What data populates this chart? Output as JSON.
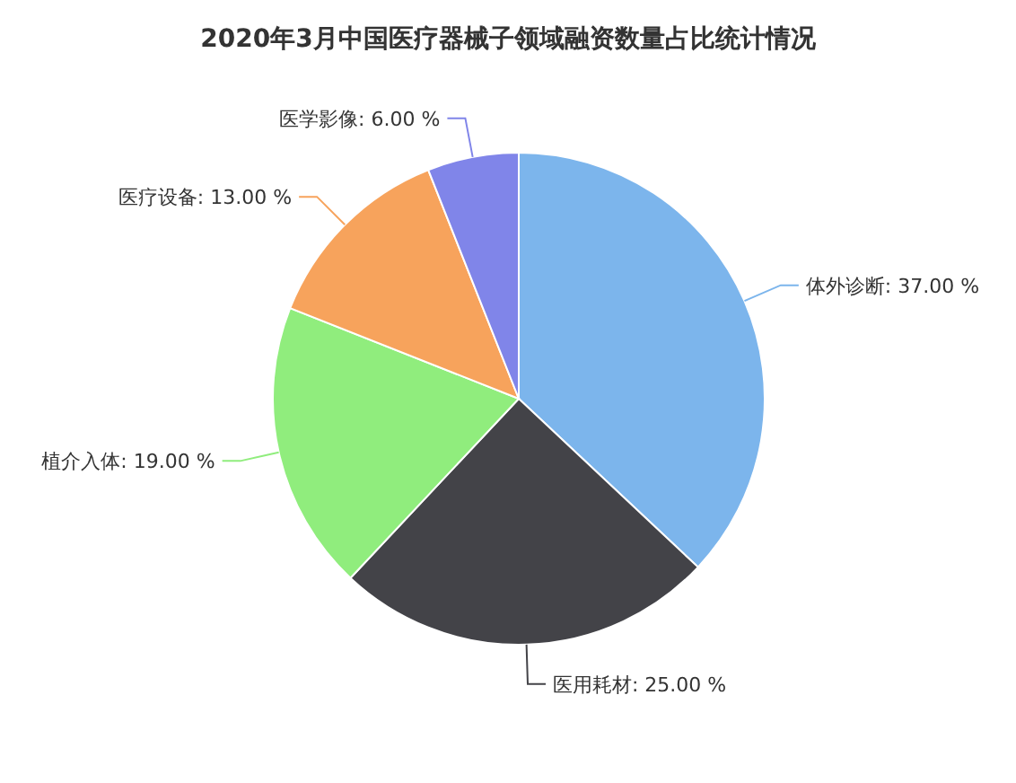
{
  "chart_data": {
    "type": "pie",
    "title": "2020年3月中国医疗器械子领域融资数量占比统计情况",
    "categories": [
      "体外诊断",
      "医用耗材",
      "植介入体",
      "医疗设备",
      "医学影像"
    ],
    "values": [
      37,
      25,
      19,
      13,
      6
    ],
    "colors": [
      "#7cb5ec",
      "#434348",
      "#90ed7d",
      "#f7a35c",
      "#8085e9"
    ],
    "value_labels": [
      "37.00 %",
      "25.00 %",
      "19.00 %",
      "13.00 %",
      "6.00 %"
    ]
  }
}
